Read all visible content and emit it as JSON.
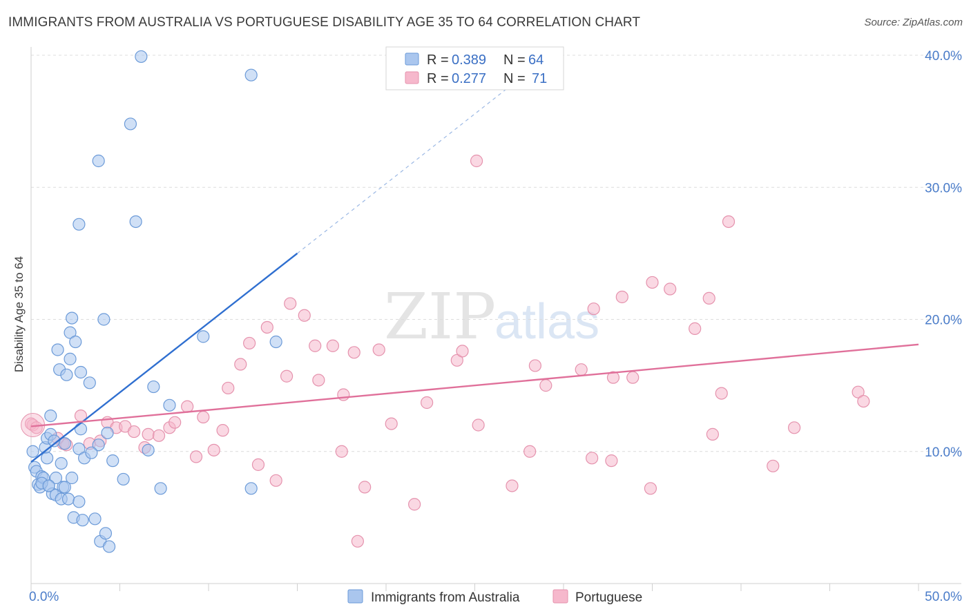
{
  "header": {
    "title": "IMMIGRANTS FROM AUSTRALIA VS PORTUGUESE DISABILITY AGE 35 TO 64 CORRELATION CHART",
    "source": "Source: ZipAtlas.com"
  },
  "watermark": {
    "zip": "ZIP",
    "atlas": "atlas"
  },
  "legend": {
    "rows": [
      {
        "r_label": "R =",
        "r_value": "0.389",
        "n_label": "N =",
        "n_value": "64",
        "color": "#aac6ee"
      },
      {
        "r_label": "R =",
        "r_value": "0.277",
        "n_label": "N =",
        "n_value": "71",
        "color": "#f6b8cc"
      }
    ]
  },
  "chart_data": {
    "type": "scatter",
    "title": "IMMIGRANTS FROM AUSTRALIA VS PORTUGUESE DISABILITY AGE 35 TO 64 CORRELATION CHART",
    "xlabel": "",
    "ylabel": "Disability Age 35 to 64",
    "xlim": [
      0,
      50
    ],
    "ylim": [
      0,
      40
    ],
    "x_tick_labels": [
      "0.0%",
      "50.0%"
    ],
    "y_ticks": [
      10,
      20,
      30,
      40
    ],
    "y_tick_labels": [
      "10.0%",
      "20.0%",
      "30.0%",
      "40.0%"
    ],
    "grid": true,
    "legend_position": "top-center",
    "series": [
      {
        "name": "Immigrants from Australia",
        "color": "#aac6ee",
        "stroke": "#6b9ad8",
        "line_color": "#2f6fd0",
        "trend": {
          "x1": 0.0,
          "y1": 9.2,
          "x2": 15.0,
          "y2": 25.0,
          "dashed_to_x": 27.5,
          "dashed_to_y": 38.2
        },
        "points": [
          [
            0.1,
            10.0
          ],
          [
            0.2,
            8.8
          ],
          [
            0.3,
            8.5
          ],
          [
            0.4,
            7.5
          ],
          [
            0.5,
            7.3
          ],
          [
            0.6,
            8.1
          ],
          [
            0.7,
            8.0
          ],
          [
            0.8,
            10.3
          ],
          [
            0.9,
            9.5
          ],
          [
            0.9,
            11.0
          ],
          [
            1.0,
            7.4
          ],
          [
            1.1,
            11.3
          ],
          [
            1.1,
            12.7
          ],
          [
            1.2,
            6.8
          ],
          [
            1.3,
            10.8
          ],
          [
            1.4,
            8.0
          ],
          [
            1.4,
            6.7
          ],
          [
            1.5,
            17.7
          ],
          [
            1.6,
            16.2
          ],
          [
            1.7,
            6.4
          ],
          [
            1.7,
            9.1
          ],
          [
            1.8,
            7.3
          ],
          [
            1.9,
            10.6
          ],
          [
            1.9,
            7.3
          ],
          [
            2.0,
            15.8
          ],
          [
            2.1,
            6.4
          ],
          [
            2.2,
            19.0
          ],
          [
            2.2,
            17.0
          ],
          [
            2.3,
            20.1
          ],
          [
            2.4,
            5.0
          ],
          [
            2.5,
            18.3
          ],
          [
            2.7,
            10.2
          ],
          [
            2.7,
            6.2
          ],
          [
            2.8,
            16.0
          ],
          [
            2.8,
            11.7
          ],
          [
            2.9,
            4.8
          ],
          [
            3.0,
            9.5
          ],
          [
            2.7,
            27.2
          ],
          [
            3.3,
            15.2
          ],
          [
            3.6,
            4.9
          ],
          [
            3.8,
            10.5
          ],
          [
            3.8,
            32.0
          ],
          [
            3.9,
            3.2
          ],
          [
            4.1,
            20.0
          ],
          [
            4.2,
            3.8
          ],
          [
            4.3,
            11.4
          ],
          [
            4.4,
            2.8
          ],
          [
            4.6,
            9.3
          ],
          [
            5.2,
            7.9
          ],
          [
            5.6,
            34.8
          ],
          [
            5.9,
            27.4
          ],
          [
            6.2,
            39.9
          ],
          [
            6.6,
            10.1
          ],
          [
            6.9,
            14.9
          ],
          [
            7.3,
            7.2
          ],
          [
            7.8,
            13.5
          ],
          [
            9.7,
            18.7
          ],
          [
            12.4,
            7.2
          ],
          [
            12.4,
            38.5
          ],
          [
            13.8,
            18.3
          ],
          [
            0.6,
            7.6
          ],
          [
            1.0,
            7.4
          ],
          [
            2.3,
            8.0
          ],
          [
            3.4,
            9.9
          ]
        ]
      },
      {
        "name": "Portuguese",
        "color": "#f6b8cc",
        "stroke": "#e592ad",
        "line_color": "#e0709a",
        "trend": {
          "x1": 0.0,
          "y1": 11.9,
          "x2": 50.0,
          "y2": 18.1
        },
        "points": [
          [
            0.1,
            12.0
          ],
          [
            1.8,
            10.6
          ],
          [
            2.0,
            10.5
          ],
          [
            2.8,
            12.7
          ],
          [
            3.3,
            10.6
          ],
          [
            3.9,
            10.8
          ],
          [
            4.3,
            12.2
          ],
          [
            4.8,
            11.8
          ],
          [
            5.3,
            11.9
          ],
          [
            5.8,
            11.5
          ],
          [
            6.4,
            10.3
          ],
          [
            6.6,
            11.3
          ],
          [
            7.2,
            11.2
          ],
          [
            7.8,
            11.8
          ],
          [
            8.1,
            12.2
          ],
          [
            8.8,
            13.4
          ],
          [
            9.3,
            9.6
          ],
          [
            9.7,
            12.6
          ],
          [
            10.3,
            10.1
          ],
          [
            10.8,
            11.6
          ],
          [
            11.1,
            14.8
          ],
          [
            11.8,
            16.6
          ],
          [
            12.3,
            18.2
          ],
          [
            12.8,
            9.0
          ],
          [
            13.3,
            19.4
          ],
          [
            13.8,
            7.8
          ],
          [
            14.4,
            15.7
          ],
          [
            14.6,
            21.2
          ],
          [
            15.4,
            20.3
          ],
          [
            16.0,
            18.0
          ],
          [
            16.2,
            15.4
          ],
          [
            17.0,
            18.0
          ],
          [
            17.5,
            10.0
          ],
          [
            17.6,
            14.3
          ],
          [
            18.2,
            17.5
          ],
          [
            18.4,
            3.2
          ],
          [
            18.8,
            7.3
          ],
          [
            19.6,
            17.7
          ],
          [
            20.3,
            12.1
          ],
          [
            21.6,
            6.0
          ],
          [
            22.3,
            13.7
          ],
          [
            24.0,
            16.9
          ],
          [
            24.3,
            17.6
          ],
          [
            25.1,
            32.0
          ],
          [
            25.2,
            12.0
          ],
          [
            27.1,
            7.4
          ],
          [
            28.1,
            10.0
          ],
          [
            28.4,
            16.5
          ],
          [
            29.0,
            15.0
          ],
          [
            31.0,
            16.2
          ],
          [
            31.6,
            9.5
          ],
          [
            31.7,
            20.8
          ],
          [
            32.7,
            9.3
          ],
          [
            32.8,
            15.6
          ],
          [
            33.3,
            21.7
          ],
          [
            33.9,
            15.6
          ],
          [
            34.9,
            7.2
          ],
          [
            35.0,
            22.8
          ],
          [
            36.0,
            22.3
          ],
          [
            37.4,
            19.3
          ],
          [
            38.2,
            21.6
          ],
          [
            38.4,
            11.3
          ],
          [
            38.9,
            14.4
          ],
          [
            39.3,
            27.4
          ],
          [
            41.8,
            8.9
          ],
          [
            43.0,
            11.8
          ],
          [
            46.6,
            14.5
          ],
          [
            46.9,
            13.8
          ],
          [
            0.0,
            12.1
          ],
          [
            0.3,
            11.8
          ],
          [
            1.5,
            11.0
          ]
        ]
      }
    ]
  },
  "bottom_legend": {
    "items": [
      {
        "label": "Immigrants from Australia",
        "color": "#aac6ee"
      },
      {
        "label": "Portuguese",
        "color": "#f6b8cc"
      }
    ]
  }
}
